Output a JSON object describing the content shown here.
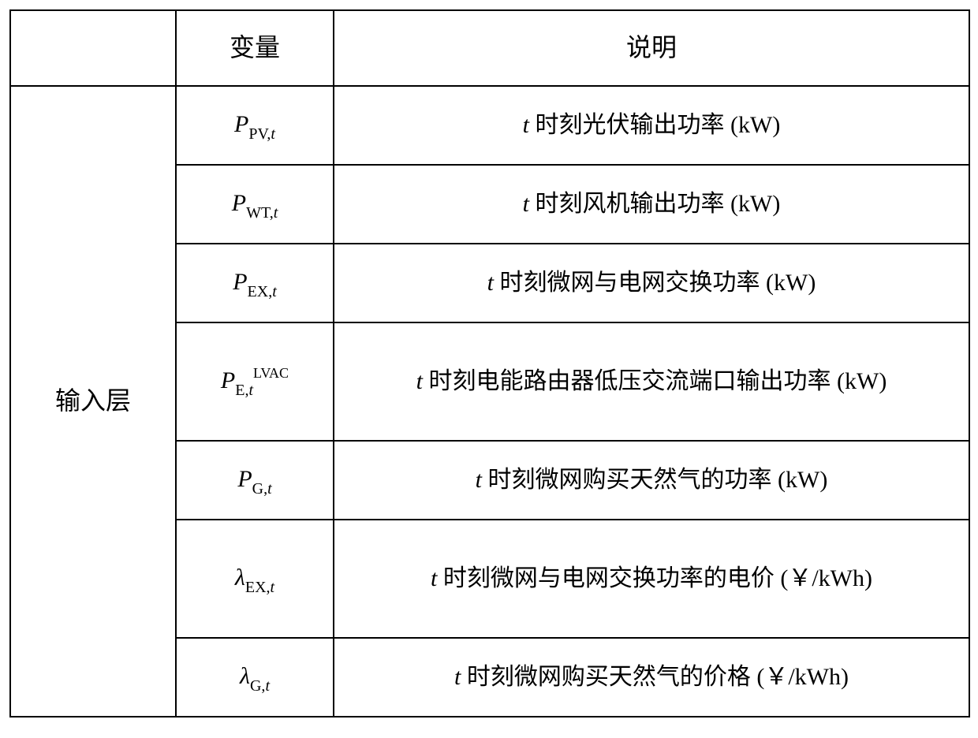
{
  "table": {
    "border_color": "#000000",
    "background_color": "#ffffff",
    "font_family": "Times New Roman, SimSun, serif",
    "base_fontsize": 30,
    "header": {
      "col1": "",
      "col2": "变量",
      "col3": "说明"
    },
    "group_label": "输入层",
    "rows": [
      {
        "var_main": "P",
        "var_sub_roman": "PV,",
        "var_sub_italic": "t",
        "var_sup": "",
        "desc_prefix_italic": "t",
        "desc_text": " 时刻光伏输出功率 (kW)",
        "tall": false
      },
      {
        "var_main": "P",
        "var_sub_roman": "WT,",
        "var_sub_italic": "t",
        "var_sup": "",
        "desc_prefix_italic": "t",
        "desc_text": " 时刻风机输出功率 (kW)",
        "tall": false
      },
      {
        "var_main": "P",
        "var_sub_roman": "EX,",
        "var_sub_italic": "t",
        "var_sup": "",
        "desc_prefix_italic": "t",
        "desc_text": " 时刻微网与电网交换功率 (kW)",
        "tall": false
      },
      {
        "var_main": "P",
        "var_sub_roman": "E,",
        "var_sub_italic": "t",
        "var_sup": "LVAC",
        "desc_prefix_italic": "t",
        "desc_text": " 时刻电能路由器低压交流端口输出功率 (kW)",
        "tall": true
      },
      {
        "var_main": "P",
        "var_sub_roman": "G,",
        "var_sub_italic": "t",
        "var_sup": "",
        "desc_prefix_italic": "t",
        "desc_text": " 时刻微网购买天然气的功率 (kW)",
        "tall": false
      },
      {
        "var_main": "λ",
        "var_sub_roman": "EX,",
        "var_sub_italic": "t",
        "var_sup": "",
        "desc_prefix_italic": "t",
        "desc_text": " 时刻微网与电网交换功率的电价 (￥/kWh)",
        "tall": true
      },
      {
        "var_main": "λ",
        "var_sub_roman": "G,",
        "var_sub_italic": "t",
        "var_sup": "",
        "desc_prefix_italic": "t",
        "desc_text": " 时刻微网购买天然气的价格 (￥/kWh)",
        "tall": false
      }
    ]
  }
}
